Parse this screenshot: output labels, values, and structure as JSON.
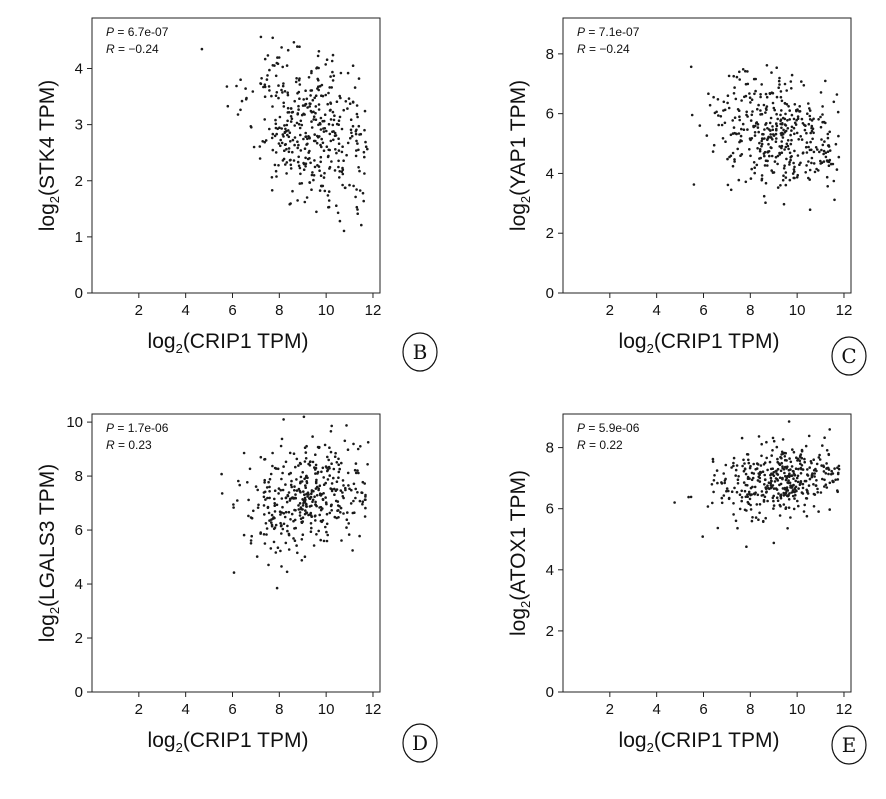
{
  "chart_data": [
    {
      "type": "scatter",
      "panel_label": "B",
      "xlabel_prefix": "log",
      "xlabel_sub": "2",
      "xlabel_suffix": "(CRIP1 TPM)",
      "ylabel_prefix": "log",
      "ylabel_sub": "2",
      "ylabel_suffix": "(STK4 TPM)",
      "xlim": [
        0,
        12.3
      ],
      "ylim": [
        0,
        4.9
      ],
      "xticks": [
        2,
        4,
        6,
        8,
        10,
        12
      ],
      "yticks": [
        0,
        1,
        2,
        3,
        4
      ],
      "p_label": "P",
      "p_value": "= 6.7e-07",
      "r_label": "R",
      "r_value": "= −0.24",
      "points": {
        "n": 420,
        "x_mean": 9.2,
        "x_sd": 1.3,
        "y_mean": 2.9,
        "y_sd": 0.65,
        "r": -0.24,
        "seed": 11
      }
    },
    {
      "type": "scatter",
      "panel_label": "C",
      "xlabel_prefix": "log",
      "xlabel_sub": "2",
      "xlabel_suffix": "(CRIP1 TPM)",
      "ylabel_prefix": "log",
      "ylabel_sub": "2",
      "ylabel_suffix": "(YAP1 TPM)",
      "xlim": [
        0,
        12.3
      ],
      "ylim": [
        0,
        9.2
      ],
      "xticks": [
        2,
        4,
        6,
        8,
        10,
        12
      ],
      "yticks": [
        0,
        2,
        4,
        6,
        8
      ],
      "p_label": "P",
      "p_value": "= 7.1e-07",
      "r_label": "R",
      "r_value": "= −0.24",
      "points": {
        "n": 420,
        "x_mean": 9.2,
        "x_sd": 1.3,
        "y_mean": 5.3,
        "y_sd": 0.95,
        "r": -0.24,
        "seed": 23
      }
    },
    {
      "type": "scatter",
      "panel_label": "D",
      "xlabel_prefix": "log",
      "xlabel_sub": "2",
      "xlabel_suffix": "(CRIP1 TPM)",
      "ylabel_prefix": "log",
      "ylabel_sub": "2",
      "ylabel_suffix": "(LGALS3 TPM)",
      "xlim": [
        0,
        12.3
      ],
      "ylim": [
        0,
        10.3
      ],
      "xticks": [
        2,
        4,
        6,
        8,
        10,
        12
      ],
      "yticks": [
        0,
        2,
        4,
        6,
        8,
        10
      ],
      "p_label": "P",
      "p_value": "= 1.7e-06",
      "r_label": "R",
      "r_value": "= 0.23",
      "points": {
        "n": 420,
        "x_mean": 9.2,
        "x_sd": 1.3,
        "y_mean": 7.3,
        "y_sd": 1.0,
        "r": 0.23,
        "seed": 37
      }
    },
    {
      "type": "scatter",
      "panel_label": "E",
      "xlabel_prefix": "log",
      "xlabel_sub": "2",
      "xlabel_suffix": "(CRIP1 TPM)",
      "ylabel_prefix": "log",
      "ylabel_sub": "2",
      "ylabel_suffix": "(ATOX1 TPM)",
      "xlim": [
        0,
        12.3
      ],
      "ylim": [
        0,
        9.1
      ],
      "xticks": [
        2,
        4,
        6,
        8,
        10,
        12
      ],
      "yticks": [
        0,
        2,
        4,
        6,
        8
      ],
      "p_label": "P",
      "p_value": "= 5.9e-06",
      "r_label": "R",
      "r_value": "= 0.22",
      "points": {
        "n": 420,
        "x_mean": 9.2,
        "x_sd": 1.3,
        "y_mean": 6.9,
        "y_sd": 0.6,
        "r": 0.22,
        "seed": 53
      }
    }
  ]
}
